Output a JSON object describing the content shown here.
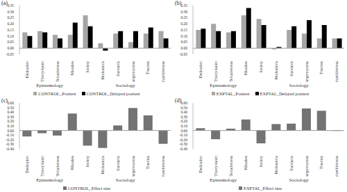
{
  "chart_data": [
    {
      "type": "bar",
      "title": "(a)",
      "categories": [
        "Dedication",
        "Theory-laden",
        "Tentativeness",
        "Mistakes",
        "Society",
        "Motivations",
        "Standards",
        "Dangerousness",
        "Theories",
        "Competitiveness"
      ],
      "groups": [
        {
          "name": "Epistemology",
          "categories": [
            "Dedication",
            "Theory-laden",
            "Tentativeness",
            "Mistakes"
          ]
        },
        {
          "name": "Sociology",
          "categories": [
            "Society",
            "Motivations",
            "Standards",
            "Dangerousness",
            "Theories",
            "Competitiveness"
          ]
        }
      ],
      "series": [
        {
          "name": "CONTROL_Posttest",
          "color": "#a6a6a6",
          "values": [
            0.13,
            0.14,
            0.11,
            0.11,
            0.27,
            0.04,
            0.12,
            0.05,
            0.12,
            0.14
          ]
        },
        {
          "name": "CONTROL_Delayed posttest",
          "color": "#000000",
          "values": [
            0.1,
            0.13,
            0.08,
            0.21,
            0.18,
            -0.02,
            0.14,
            0.14,
            0.17,
            0.08
          ]
        }
      ],
      "ylim": [
        -0.05,
        0.35
      ],
      "yticks": [
        {
          "value": -0.05,
          "label": "-0.05"
        },
        {
          "value": 0,
          "label": "0.00"
        },
        {
          "value": 0.05,
          "label": "0.05"
        },
        {
          "value": 0.1,
          "label": "0.10"
        },
        {
          "value": 0.15,
          "label": "0.15"
        },
        {
          "value": 0.2,
          "label": "0.20"
        },
        {
          "value": 0.25,
          "label": "0.25"
        },
        {
          "value": 0.3,
          "label": "0.30"
        },
        {
          "value": 0.35,
          "label": "0.35"
        }
      ],
      "grid": false,
      "legend": "bottom"
    },
    {
      "type": "bar",
      "title": "(b)",
      "categories": [
        "Dedication",
        "Theory-laden",
        "Tentativeness",
        "Mistakes",
        "Society",
        "Motivations",
        "Standards",
        "Dangerousness",
        "Theories",
        "Competitiveness"
      ],
      "groups": [
        {
          "name": "Epistemology",
          "categories": [
            "Dedication",
            "Theory-laden",
            "Tentativeness",
            "Mistakes"
          ]
        },
        {
          "name": "Sociology",
          "categories": [
            "Society",
            "Motivations",
            "Standards",
            "Dangerousness",
            "Theories",
            "Competitiveness"
          ]
        }
      ],
      "series": [
        {
          "name": "EXPTAL_Posttest",
          "color": "#a6a6a6",
          "values": [
            0.15,
            0.2,
            0.13,
            0.27,
            0.24,
            -0.01,
            0.15,
            0.12,
            0.08,
            0.08
          ]
        },
        {
          "name": "EXPTAL_Delayed posttest",
          "color": "#000000",
          "values": [
            0.16,
            0.14,
            0.14,
            0.33,
            0.19,
            0.01,
            0.18,
            0.23,
            0.19,
            0.08
          ]
        }
      ],
      "ylim": [
        -0.05,
        0.35
      ],
      "yticks": [
        {
          "value": -0.05,
          "label": "-0.05"
        },
        {
          "value": 0,
          "label": "0.00"
        },
        {
          "value": 0.05,
          "label": "0.05"
        },
        {
          "value": 0.1,
          "label": "0.10"
        },
        {
          "value": 0.15,
          "label": "0.15"
        },
        {
          "value": 0.2,
          "label": "0.20"
        },
        {
          "value": 0.25,
          "label": "0.25"
        },
        {
          "value": 0.3,
          "label": "0.30"
        },
        {
          "value": 0.35,
          "label": "0.35"
        }
      ],
      "grid": false,
      "legend": "bottom"
    },
    {
      "type": "bar",
      "title": "(c)",
      "categories": [
        "Dedication",
        "Theory-laden",
        "Tentativeness",
        "Mistakes",
        "Society",
        "Motivations",
        "Standards",
        "Dangerousness",
        "Theories",
        "Competitiveness"
      ],
      "groups": [
        {
          "name": "Epistemology",
          "categories": [
            "Dedication",
            "Theory-laden",
            "Tentativeness",
            "Mistakes"
          ]
        },
        {
          "name": "Sociology",
          "categories": [
            "Society",
            "Motivations",
            "Standards",
            "Dangerousness",
            "Theories",
            "Competitiveness"
          ]
        }
      ],
      "series": [
        {
          "name": "CONTROL_Effect size",
          "color": "#737373",
          "values": [
            -0.13,
            -0.06,
            -0.11,
            0.37,
            -0.33,
            -0.38,
            0.11,
            0.49,
            0.33,
            -0.29
          ]
        }
      ],
      "ylim": [
        -0.4,
        0.6
      ],
      "yticks": [
        {
          "value": -0.4,
          "label": "-0.40"
        },
        {
          "value": -0.3,
          "label": "-0.30"
        },
        {
          "value": -0.2,
          "label": "-0.20"
        },
        {
          "value": -0.1,
          "label": "-0.10"
        },
        {
          "value": 0,
          "label": "0.00"
        },
        {
          "value": 0.1,
          "label": "0.10"
        },
        {
          "value": 0.2,
          "label": "0.20"
        },
        {
          "value": 0.3,
          "label": "0.30"
        },
        {
          "value": 0.4,
          "label": "0.40"
        },
        {
          "value": 0.5,
          "label": "0.50"
        },
        {
          "value": 0.6,
          "label": "0.60"
        }
      ],
      "grid": false,
      "legend": "bottom"
    },
    {
      "type": "bar",
      "title": "(d)",
      "categories": [
        "Dedication",
        "Theory-laden",
        "Tentativeness",
        "Mistakes",
        "Society",
        "Motivations",
        "Standards",
        "Dangerousness",
        "Theories",
        "Competitiveness"
      ],
      "groups": [
        {
          "name": "Epistemology",
          "categories": [
            "Dedication",
            "Theory-laden",
            "Tentativeness",
            "Mistakes"
          ]
        },
        {
          "name": "Sociology",
          "categories": [
            "Society",
            "Motivations",
            "Standards",
            "Dangerousness",
            "Theories",
            "Competitiveness"
          ]
        }
      ],
      "series": [
        {
          "name": "EXPTAL_Effect size",
          "color": "#737373",
          "values": [
            0.05,
            -0.19,
            0.04,
            0.24,
            -0.28,
            0.14,
            0.15,
            0.48,
            0.43,
            -0.01
          ]
        }
      ],
      "ylim": [
        -0.4,
        0.6
      ],
      "yticks": [
        {
          "value": -0.4,
          "label": "-0.40"
        },
        {
          "value": -0.3,
          "label": "-0.30"
        },
        {
          "value": -0.2,
          "label": "-0.20"
        },
        {
          "value": -0.1,
          "label": "-0.10"
        },
        {
          "value": 0,
          "label": "0.00"
        },
        {
          "value": 0.1,
          "label": "0.10"
        },
        {
          "value": 0.2,
          "label": "0.20"
        },
        {
          "value": 0.3,
          "label": "0.30"
        },
        {
          "value": 0.4,
          "label": "0.40"
        },
        {
          "value": 0.5,
          "label": "0.50"
        },
        {
          "value": 0.6,
          "label": "0.60"
        }
      ],
      "grid": false,
      "legend": "bottom"
    }
  ]
}
